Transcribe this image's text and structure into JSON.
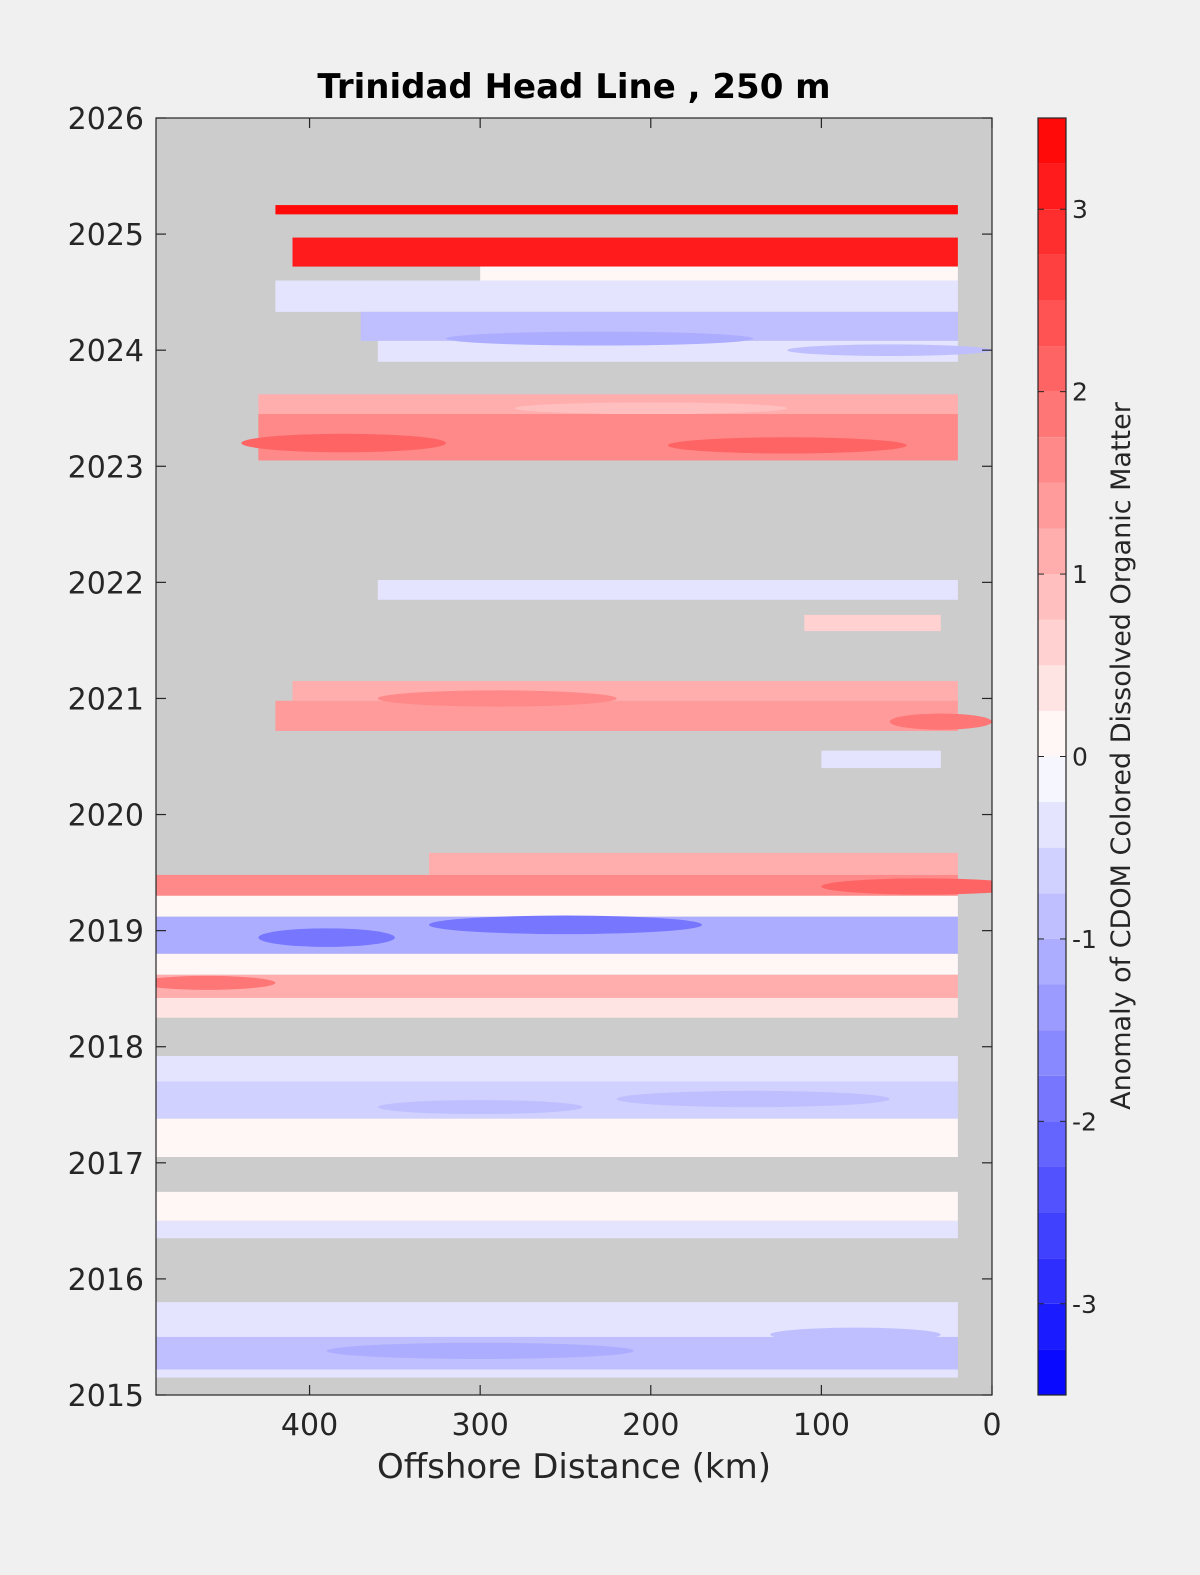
{
  "chart_data": {
    "type": "heatmap",
    "title": "Trinidad Head Line , 250 m",
    "xlabel": "Offshore Distance (km)",
    "ylabel": "",
    "x_reversed": true,
    "xlim": [
      490,
      0
    ],
    "ylim": [
      2015,
      2026
    ],
    "x_ticks": [
      400,
      300,
      200,
      100,
      0
    ],
    "y_ticks": [
      2015,
      2016,
      2017,
      2018,
      2019,
      2020,
      2021,
      2022,
      2023,
      2024,
      2025,
      2026
    ],
    "missing_color": "#cccccc",
    "colorbar": {
      "label": "Anomaly of CDOM Colored Dissolved Organic Matter",
      "range": [
        -3.5,
        3.5
      ],
      "levels": 28,
      "ticks": [
        3,
        2,
        1,
        0,
        -1,
        -2,
        -3
      ],
      "negative_color": "#0000ff",
      "zero_color": "#ffffff",
      "positive_color": "#ff0000"
    },
    "bands": [
      {
        "y0": 2025.17,
        "y1": 2025.25,
        "x_from": 420,
        "x_to": 20,
        "value": 3.4
      },
      {
        "y0": 2024.72,
        "y1": 2024.97,
        "x_from": 410,
        "x_to": 20,
        "value": 3.1
      },
      {
        "y0": 2024.6,
        "y1": 2024.72,
        "x_from": 300,
        "x_to": 20,
        "value": 0.0
      },
      {
        "y0": 2024.33,
        "y1": 2024.6,
        "x_from": 420,
        "x_to": 20,
        "value": -0.4
      },
      {
        "y0": 2024.08,
        "y1": 2024.33,
        "x_from": 370,
        "x_to": 20,
        "value": -0.8
      },
      {
        "y0": 2023.9,
        "y1": 2024.08,
        "x_from": 360,
        "x_to": 20,
        "value": -0.3
      },
      {
        "y0": 2023.45,
        "y1": 2023.62,
        "x_from": 430,
        "x_to": 20,
        "value": 1.1
      },
      {
        "y0": 2023.05,
        "y1": 2023.45,
        "x_from": 430,
        "x_to": 20,
        "value": 1.6
      },
      {
        "y0": 2021.85,
        "y1": 2022.02,
        "x_from": 360,
        "x_to": 20,
        "value": -0.4
      },
      {
        "y0": 2021.58,
        "y1": 2021.72,
        "x_from": 110,
        "x_to": 30,
        "value": 0.7
      },
      {
        "y0": 2020.98,
        "y1": 2021.15,
        "x_from": 410,
        "x_to": 20,
        "value": 1.0
      },
      {
        "y0": 2020.72,
        "y1": 2020.98,
        "x_from": 420,
        "x_to": 20,
        "value": 1.3
      },
      {
        "y0": 2020.4,
        "y1": 2020.55,
        "x_from": 100,
        "x_to": 30,
        "value": -0.5
      },
      {
        "y0": 2019.48,
        "y1": 2019.67,
        "x_from": 330,
        "x_to": 20,
        "value": 1.1
      },
      {
        "y0": 2019.3,
        "y1": 2019.48,
        "x_from": 490,
        "x_to": 20,
        "value": 1.5
      },
      {
        "y0": 2019.12,
        "y1": 2019.3,
        "x_from": 490,
        "x_to": 20,
        "value": 0.0
      },
      {
        "y0": 2018.8,
        "y1": 2019.12,
        "x_from": 490,
        "x_to": 20,
        "value": -1.1
      },
      {
        "y0": 2018.62,
        "y1": 2018.8,
        "x_from": 490,
        "x_to": 20,
        "value": 0.0
      },
      {
        "y0": 2018.42,
        "y1": 2018.62,
        "x_from": 490,
        "x_to": 20,
        "value": 1.2
      },
      {
        "y0": 2018.25,
        "y1": 2018.42,
        "x_from": 490,
        "x_to": 20,
        "value": 0.3
      },
      {
        "y0": 2017.7,
        "y1": 2017.92,
        "x_from": 490,
        "x_to": 20,
        "value": -0.3
      },
      {
        "y0": 2017.38,
        "y1": 2017.7,
        "x_from": 490,
        "x_to": 20,
        "value": -0.6
      },
      {
        "y0": 2017.05,
        "y1": 2017.38,
        "x_from": 490,
        "x_to": 20,
        "value": 0.0
      },
      {
        "y0": 2016.5,
        "y1": 2016.75,
        "x_from": 490,
        "x_to": 20,
        "value": 0.0
      },
      {
        "y0": 2016.35,
        "y1": 2016.5,
        "x_from": 490,
        "x_to": 20,
        "value": -0.3
      },
      {
        "y0": 2015.5,
        "y1": 2015.8,
        "x_from": 490,
        "x_to": 20,
        "value": -0.5
      },
      {
        "y0": 2015.22,
        "y1": 2015.5,
        "x_from": 490,
        "x_to": 20,
        "value": -0.8
      },
      {
        "y0": 2015.15,
        "y1": 2015.22,
        "x_from": 490,
        "x_to": 20,
        "value": -0.3
      }
    ],
    "blobs": [
      {
        "x": 390,
        "y": 2018.94,
        "rx": 40,
        "ry": 0.08,
        "value": -2.0
      },
      {
        "x": 250,
        "y": 2019.05,
        "rx": 80,
        "ry": 0.08,
        "value": -1.8
      },
      {
        "x": 40,
        "y": 2019.38,
        "rx": 60,
        "ry": 0.07,
        "value": 2.2
      },
      {
        "x": 230,
        "y": 2024.1,
        "rx": 90,
        "ry": 0.06,
        "value": -1.2
      },
      {
        "x": 60,
        "y": 2024.0,
        "rx": 60,
        "ry": 0.05,
        "value": -1.0
      },
      {
        "x": 380,
        "y": 2023.2,
        "rx": 60,
        "ry": 0.08,
        "value": 2.0
      },
      {
        "x": 120,
        "y": 2023.18,
        "rx": 70,
        "ry": 0.07,
        "value": 2.0
      },
      {
        "x": 200,
        "y": 2023.5,
        "rx": 80,
        "ry": 0.05,
        "value": 0.8
      },
      {
        "x": 290,
        "y": 2021.0,
        "rx": 70,
        "ry": 0.07,
        "value": 1.6
      },
      {
        "x": 30,
        "y": 2020.8,
        "rx": 30,
        "ry": 0.07,
        "value": 1.8
      },
      {
        "x": 460,
        "y": 2018.55,
        "rx": 40,
        "ry": 0.06,
        "value": 1.8
      },
      {
        "x": 300,
        "y": 2017.48,
        "rx": 60,
        "ry": 0.06,
        "value": -1.0
      },
      {
        "x": 140,
        "y": 2017.55,
        "rx": 80,
        "ry": 0.07,
        "value": -0.8
      },
      {
        "x": 300,
        "y": 2015.38,
        "rx": 90,
        "ry": 0.07,
        "value": -1.1
      },
      {
        "x": 80,
        "y": 2015.52,
        "rx": 50,
        "ry": 0.06,
        "value": -0.9
      }
    ]
  }
}
